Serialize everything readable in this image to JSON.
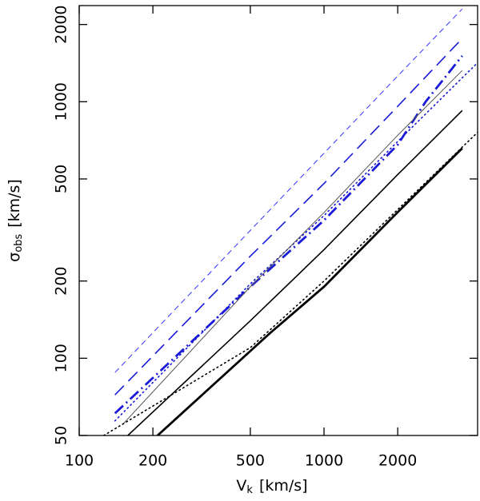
{
  "chart_data": {
    "type": "line",
    "xscale": "log",
    "yscale": "log",
    "x_label": {
      "main": "V",
      "sub": "k",
      "unit": "[km/s]"
    },
    "y_label": {
      "main": "σ",
      "sub": "obs",
      "unit": "[km/s]"
    },
    "xlim": [
      100,
      4240
    ],
    "ylim": [
      50,
      2370
    ],
    "xticks": [
      100,
      200,
      500,
      1000,
      2000
    ],
    "yticks": [
      50,
      100,
      200,
      500,
      1000,
      2000
    ],
    "grid": false,
    "series": [
      {
        "color": "#3333ff",
        "style": "dashed",
        "weight": "thin",
        "x": [
          140,
          500,
          1000,
          2000,
          3670
        ],
        "values": [
          88,
          315,
          630,
          1260,
          2300
        ]
      },
      {
        "color": "#1a1ad9",
        "style": "long-dashed",
        "weight": "medium",
        "x": [
          140,
          500,
          1000,
          2000,
          3670
        ],
        "values": [
          72,
          250,
          480,
          960,
          1765
        ]
      },
      {
        "color": "#1a1ad9",
        "style": "dash-dot",
        "weight": "thick",
        "x": [
          140,
          500,
          1000,
          2000,
          2600,
          3670
        ],
        "values": [
          61,
          190,
          345,
          680,
          1000,
          1510
        ]
      },
      {
        "color": "#1a1ad9",
        "style": "dotted",
        "weight": "medium",
        "x": [
          140,
          500,
          1000,
          2000,
          4240
        ],
        "values": [
          57,
          195,
          360,
          700,
          1420
        ]
      },
      {
        "color": "#555555",
        "style": "solid",
        "weight": "thin",
        "x": [
          150,
          500,
          1000,
          2000,
          3670
        ],
        "values": [
          55,
          190,
          370,
          740,
          1324
        ]
      },
      {
        "color": "#000000",
        "style": "solid",
        "weight": "medium",
        "x": [
          158,
          500,
          1000,
          2000,
          3670
        ],
        "values": [
          50,
          140,
          265,
          520,
          924
        ]
      },
      {
        "color": "#000000",
        "style": "dotted",
        "weight": "medium",
        "x": [
          126,
          500,
          1000,
          2000,
          4240
        ],
        "values": [
          50,
          110,
          200,
          380,
          760
        ]
      },
      {
        "color": "#000000",
        "style": "solid",
        "weight": "thick",
        "x": [
          209,
          600,
          1000,
          2000,
          3670
        ],
        "values": [
          50,
          125,
          190,
          371,
          659
        ]
      }
    ]
  }
}
